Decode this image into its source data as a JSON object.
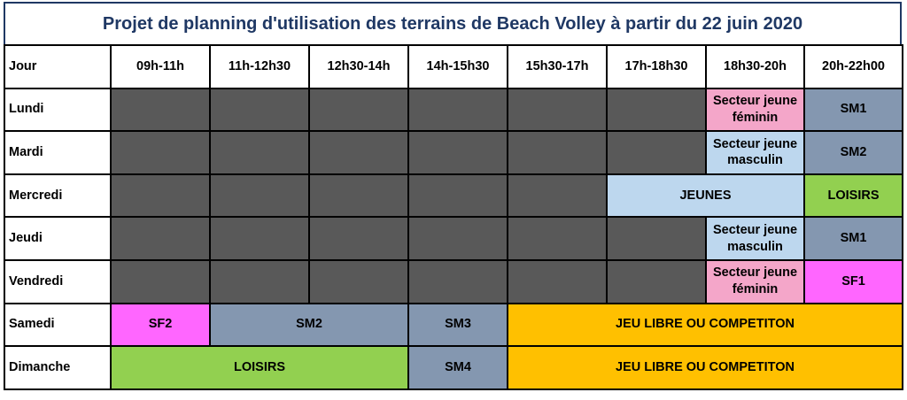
{
  "title": "Projet de planning d'utilisation des terrains de Beach Volley  à partir du 22 juin 2020",
  "header": {
    "day_label": "Jour",
    "slots": [
      "09h-11h",
      "11h-12h30",
      "12h30-14h",
      "14h-15h30",
      "15h30-17h",
      "17h-18h30",
      "18h30-20h",
      "20h-22h00"
    ]
  },
  "rows": [
    {
      "day": "Lundi",
      "jeunes": "Secteur jeune féminin",
      "late": "SM1"
    },
    {
      "day": "Mardi",
      "jeunes": "Secteur jeune masculin",
      "late": "SM2"
    },
    {
      "day": "Mercredi",
      "jeunes": "JEUNES",
      "late": "LOISIRS"
    },
    {
      "day": "Jeudi",
      "jeunes": "Secteur jeune masculin",
      "late": "SM1"
    },
    {
      "day": "Vendredi",
      "jeunes": "Secteur jeune féminin",
      "late": "SF1"
    },
    {
      "day": "Samedi",
      "a": "SF2",
      "b": "SM2",
      "c": "SM3",
      "d": "JEU LIBRE OU COMPETITON"
    },
    {
      "day": "Dimanche",
      "a": "LOISIRS",
      "c": "SM4",
      "d": "JEU LIBRE OU COMPETITON"
    }
  ],
  "colors": {
    "unavailable": "#595959",
    "feminin": "#f4a6c9",
    "senior": "#8497b0",
    "jeunes": "#bdd7ee",
    "loisirs": "#92d050",
    "sf": "#ff66ff",
    "jeu_libre": "#ffc000",
    "title_text": "#1f3864"
  }
}
